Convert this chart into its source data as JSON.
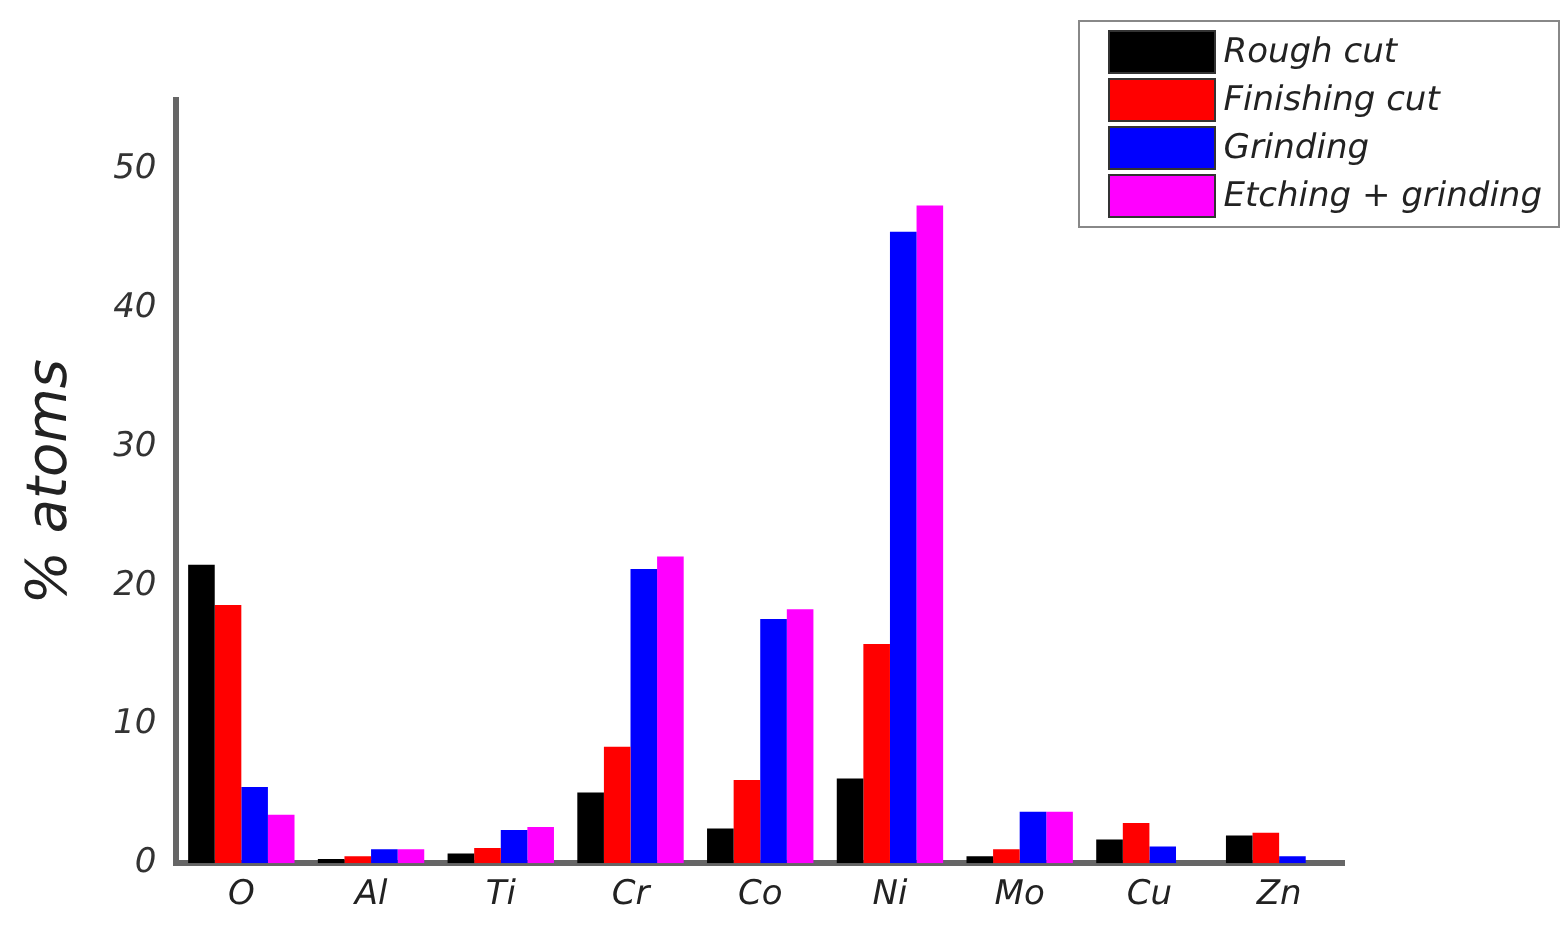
{
  "chart_data": {
    "type": "bar",
    "ylabel": "% atoms",
    "categories": [
      "O",
      "Al",
      "Ti",
      "Cr",
      "Co",
      "Ni",
      "Mo",
      "Cu",
      "Zn"
    ],
    "series": [
      {
        "name": "Rough cut",
        "color": "#000000",
        "values": [
          21.5,
          0.3,
          0.7,
          5.1,
          2.5,
          6.1,
          0.5,
          1.7,
          2.0
        ]
      },
      {
        "name": "Finishing cut",
        "color": "#ff0000",
        "values": [
          18.6,
          0.5,
          1.1,
          8.4,
          6.0,
          15.8,
          1.0,
          2.9,
          2.2
        ]
      },
      {
        "name": "Grinding",
        "color": "#0000ff",
        "values": [
          5.5,
          1.0,
          2.4,
          21.2,
          17.6,
          45.5,
          3.7,
          1.2,
          0.5
        ]
      },
      {
        "name": "Etching + grinding",
        "color": "#ff00ff",
        "values": [
          3.5,
          1.0,
          2.6,
          22.1,
          18.3,
          47.4,
          3.7,
          null,
          null
        ]
      }
    ],
    "ylim": [
      0,
      55
    ],
    "yticks": [
      0,
      10,
      20,
      30,
      40,
      50
    ],
    "grid": false,
    "legend": "top right"
  }
}
